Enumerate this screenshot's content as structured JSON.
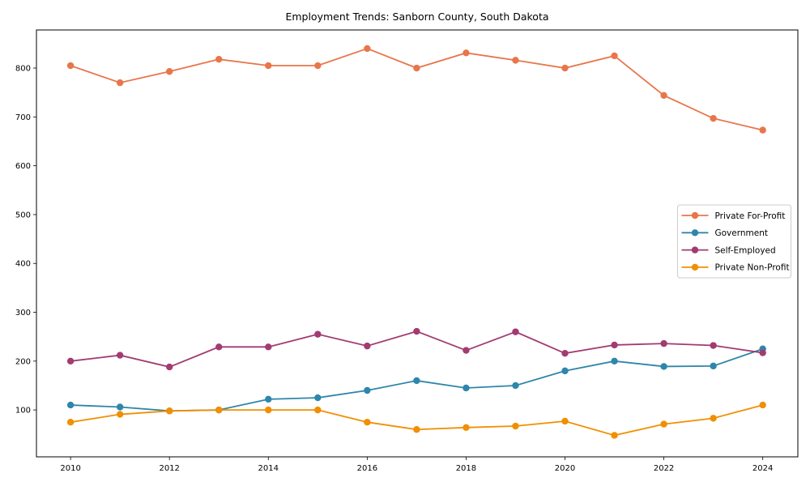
{
  "chart_data": {
    "type": "line",
    "title": "Employment Trends: Sanborn County, South Dakota",
    "xlabel": "",
    "ylabel": "",
    "x": [
      2010,
      2011,
      2012,
      2013,
      2014,
      2015,
      2016,
      2017,
      2018,
      2019,
      2020,
      2021,
      2022,
      2023,
      2024
    ],
    "series": [
      {
        "name": "Private For-Profit",
        "color": "#E8764B",
        "values": [
          805,
          770,
          793,
          818,
          805,
          805,
          840,
          800,
          831,
          816,
          800,
          825,
          744,
          697,
          673
        ]
      },
      {
        "name": "Government",
        "color": "#2E86AB",
        "values": [
          110,
          106,
          98,
          100,
          122,
          125,
          140,
          160,
          145,
          150,
          180,
          200,
          189,
          190,
          225
        ]
      },
      {
        "name": "Self-Employed",
        "color": "#A23B72",
        "values": [
          200,
          212,
          188,
          229,
          229,
          255,
          231,
          261,
          222,
          260,
          216,
          233,
          236,
          232,
          217
        ]
      },
      {
        "name": "Private Non-Profit",
        "color": "#F18F01",
        "values": [
          75,
          91,
          98,
          100,
          100,
          100,
          75,
          60,
          64,
          67,
          77,
          48,
          71,
          83,
          110
        ]
      }
    ],
    "xticks": [
      2010,
      2012,
      2014,
      2016,
      2018,
      2020,
      2022,
      2024
    ],
    "yticks": [
      100,
      200,
      300,
      400,
      500,
      600,
      700,
      800
    ],
    "xlim": [
      2009.31,
      2024.71
    ],
    "ylim": [
      4,
      878
    ],
    "grid": false,
    "marker": "o",
    "legend_position": "center right",
    "axis_color": "#000000",
    "legend_border_color": "#cccccc",
    "background_color": "#ffffff"
  }
}
